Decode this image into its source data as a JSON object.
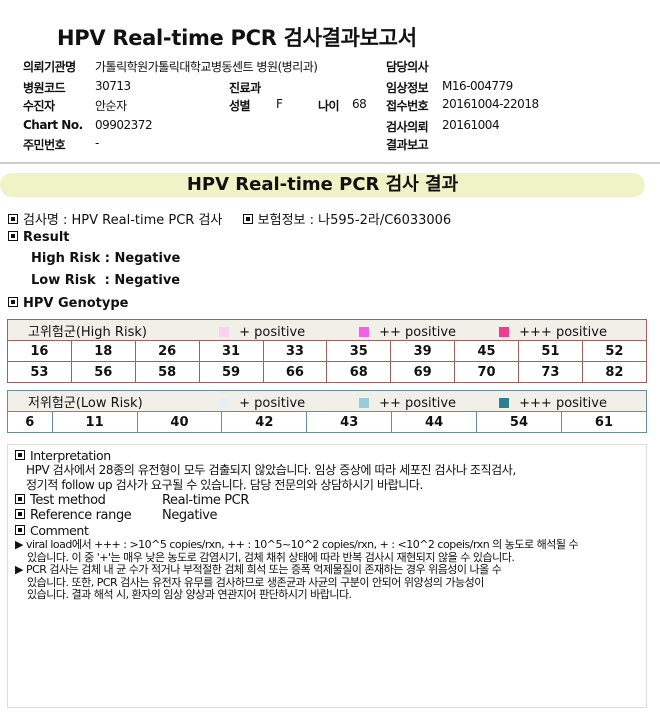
{
  "title": "HPV Real-time PCR 검사결과보고서",
  "header": {
    "institution_label": "의뢰기관명",
    "institution": "가톨릭학원가톨릭대학교병동센트 병원(병리과)",
    "doctor_label": "담당의사",
    "doctor": "",
    "hospital_code_label": "병원코드",
    "hospital_code": "30713",
    "dept_label": "진료과",
    "dept": "",
    "clinical_label": "임상정보",
    "clinical": "M16-004779",
    "patient_label": "수진자",
    "patient": "안순자",
    "sex_label": "성별",
    "sex": "F",
    "age_label": "나이",
    "age": "68",
    "receipt_label": "접수번호",
    "receipt": "20161004-22018",
    "chart_label": "Chart No.",
    "chart": "09902372",
    "request_label": "검사의뢰",
    "request": "20161004",
    "id_label": "주민번호",
    "id": "-",
    "report_label": "결과보고",
    "report": ""
  },
  "band_title": "HPV Real-time PCR 검사 결과",
  "test_name": "검사명 : HPV Real-time PCR 검사",
  "insurance": "보험정보 : 나595-2라/C6033006",
  "result_label": "Result",
  "high_risk_result": "High Risk : Negative",
  "low_risk_result": "Low Risk  : Negative",
  "genotype_label": "HPV Genotype",
  "high_risk": {
    "label": "고위험군(High Risk)",
    "legend": [
      {
        "label": "+ positive",
        "color": "#fbd0f0"
      },
      {
        "label": "++ positive",
        "color": "#f060e8"
      },
      {
        "label": "+++ positive",
        "color": "#f03c8c"
      }
    ],
    "rows": [
      [
        "16",
        "18",
        "26",
        "31",
        "33",
        "35",
        "39",
        "45",
        "51",
        "52"
      ],
      [
        "53",
        "56",
        "58",
        "59",
        "66",
        "68",
        "69",
        "70",
        "73",
        "82"
      ]
    ]
  },
  "low_risk": {
    "label": "저위험군(Low Risk)",
    "legend": [
      {
        "label": "+ positive",
        "color": "#e4eef4"
      },
      {
        "label": "++ positive",
        "color": "#98ccd8"
      },
      {
        "label": "+++ positive",
        "color": "#2c8090"
      }
    ],
    "rows": [
      [
        "6",
        "11",
        "40",
        "42",
        "43",
        "44",
        "54",
        "61"
      ]
    ]
  },
  "interpretation": {
    "label": "Interpretation",
    "text1": "HPV 검사에서 28종의 유전형이 모두 검출되지  않았습니다. 임상 증상에 따라 세포진 검사나 조직검사,",
    "text2": "정기적 follow up 검사가 요구될 수 있습니다. 담당 전문의와 상담하시기 바랍니다."
  },
  "test_method_label": "Test method",
  "test_method": "Real-time PCR",
  "reference_label": "Reference range",
  "reference": "Negative",
  "comment_label": "Comment",
  "comments": [
    "viral load에서 +++ : >10^5 copies/rxn, ++ : 10^5~10^2 copies/rxn, + : <10^2 copeis/rxn 의 농도로 해석될 수",
    "있습니다. 이 중 '+'는 매우 낮은 농도로 감염시기, 검체 채취 상태에 따라 반복 검사시 재현되지 않을 수 있습니다.",
    "PCR 검사는 검체 내 균 수가 적거나 부적절한 검체 희석 또는 증폭 억제물질이 존재하는 경우 위음성이 나올 수",
    "있습니다. 또한, PCR 검사는 유전자 유무를 검사하므로 생존균과 사균의 구분이 안되어 위양성의 가능성이",
    "있습니다. 결과 해석 시, 환자의 임상 양상과 연관지어 판단하시기 바랍니다."
  ]
}
